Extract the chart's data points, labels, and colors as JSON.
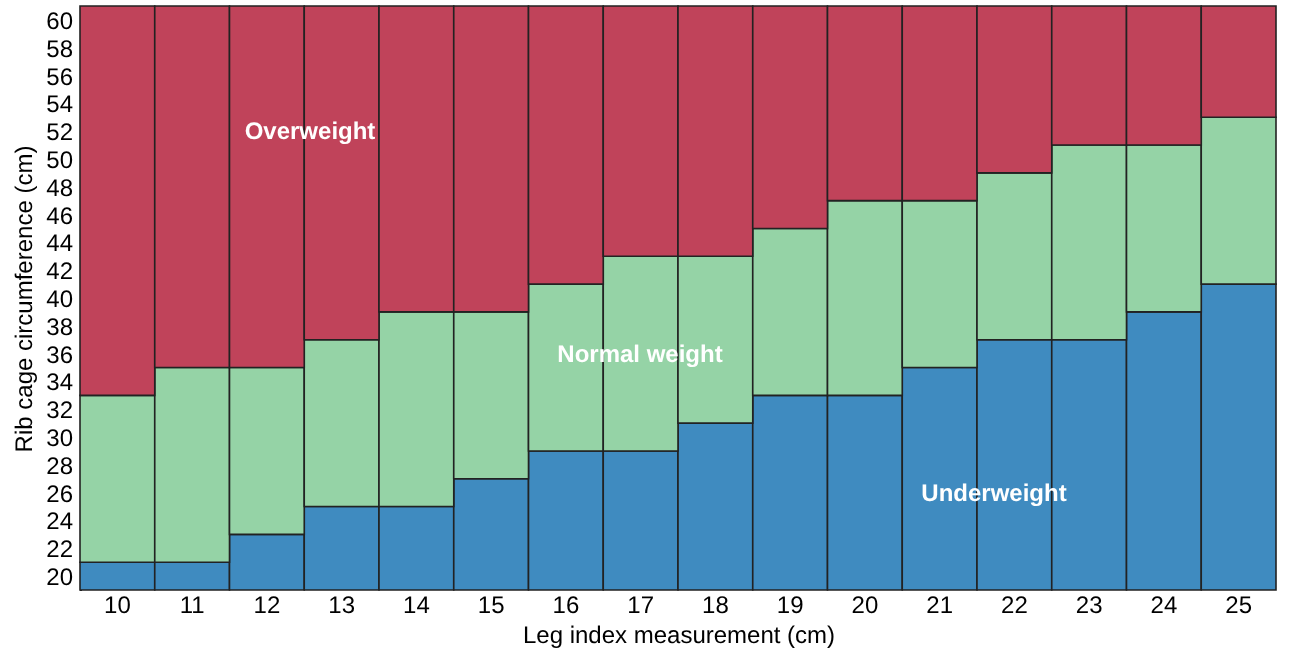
{
  "chart_data": {
    "type": "bar",
    "xlabel": "Leg index measurement (cm)",
    "ylabel": "Rib cage circumference (cm)",
    "categories": [
      "10",
      "11",
      "12",
      "13",
      "14",
      "15",
      "16",
      "17",
      "18",
      "19",
      "20",
      "21",
      "22",
      "23",
      "24",
      "25"
    ],
    "series": [
      {
        "name": "Underweight",
        "color": "#3f8bc0",
        "base": [
          19,
          19,
          19,
          19,
          19,
          19,
          19,
          19,
          19,
          19,
          19,
          19,
          19,
          19,
          19,
          19
        ],
        "values": [
          2,
          2,
          4,
          6,
          6,
          8,
          10,
          10,
          12,
          14,
          14,
          16,
          18,
          18,
          20,
          22
        ]
      },
      {
        "name": "Normal weight",
        "color": "#95d3a6",
        "base": [
          21,
          21,
          23,
          25,
          25,
          27,
          29,
          29,
          31,
          33,
          33,
          35,
          37,
          37,
          39,
          41
        ],
        "values": [
          12,
          14,
          12,
          12,
          14,
          12,
          12,
          14,
          12,
          12,
          14,
          12,
          12,
          14,
          12,
          12
        ]
      },
      {
        "name": "Overweight",
        "color": "#c0435a",
        "base": [
          33,
          35,
          35,
          37,
          39,
          39,
          41,
          43,
          43,
          45,
          47,
          47,
          49,
          51,
          51,
          53
        ],
        "values": [
          28,
          26,
          26,
          24,
          22,
          22,
          20,
          18,
          18,
          16,
          14,
          14,
          12,
          10,
          10,
          8
        ]
      }
    ],
    "ylim": [
      19,
      61
    ],
    "yticks": [
      20,
      22,
      24,
      26,
      28,
      30,
      32,
      34,
      36,
      38,
      40,
      42,
      44,
      46,
      48,
      50,
      52,
      54,
      56,
      58,
      60
    ],
    "grid": false
  }
}
